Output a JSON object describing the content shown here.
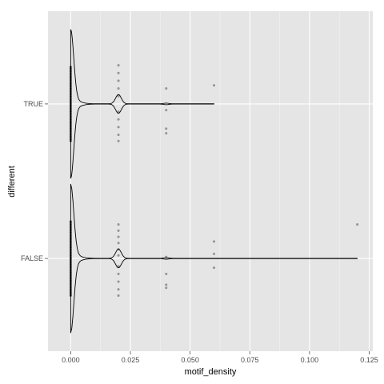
{
  "chart_data": {
    "type": "violin",
    "orientation": "horizontal",
    "xlabel": "motif_density",
    "ylabel": "different",
    "xlim": [
      -0.0095,
      0.1265
    ],
    "x_ticks": [
      0.0,
      0.025,
      0.05,
      0.075,
      0.1,
      0.125
    ],
    "x_tick_labels": [
      "0.000",
      "0.025",
      "0.050",
      "0.075",
      "0.100",
      "0.125"
    ],
    "categories": [
      "FALSE",
      "TRUE"
    ],
    "grid": true,
    "legend": "none",
    "colors": {
      "panel": "#e5e5e5",
      "grid_major": "#ffffff",
      "grid_minor": "#f2f2f2",
      "violin": "#000000",
      "point": "#9a9a9a"
    },
    "groups": [
      {
        "category": "FALSE",
        "max": 0.12,
        "points": [
          {
            "x": 0.02,
            "offset": 0.22
          },
          {
            "x": 0.02,
            "offset": 0.18
          },
          {
            "x": 0.02,
            "offset": 0.14
          },
          {
            "x": 0.02,
            "offset": 0.1
          },
          {
            "x": 0.02,
            "offset": 0.06
          },
          {
            "x": 0.02,
            "offset": 0.02
          },
          {
            "x": 0.02,
            "offset": -0.05
          },
          {
            "x": 0.02,
            "offset": -0.1
          },
          {
            "x": 0.02,
            "offset": -0.15
          },
          {
            "x": 0.02,
            "offset": -0.2
          },
          {
            "x": 0.02,
            "offset": -0.24
          },
          {
            "x": 0.04,
            "offset": 0.01
          },
          {
            "x": 0.04,
            "offset": -0.1
          },
          {
            "x": 0.04,
            "offset": -0.17
          },
          {
            "x": 0.04,
            "offset": -0.19
          },
          {
            "x": 0.06,
            "offset": 0.11
          },
          {
            "x": 0.06,
            "offset": 0.03
          },
          {
            "x": 0.06,
            "offset": -0.06
          },
          {
            "x": 0.12,
            "offset": 0.22
          }
        ]
      },
      {
        "category": "TRUE",
        "max": 0.06,
        "points": [
          {
            "x": 0.02,
            "offset": 0.25
          },
          {
            "x": 0.02,
            "offset": 0.2
          },
          {
            "x": 0.02,
            "offset": 0.15
          },
          {
            "x": 0.02,
            "offset": 0.1
          },
          {
            "x": 0.02,
            "offset": 0.05
          },
          {
            "x": 0.02,
            "offset": -0.05
          },
          {
            "x": 0.02,
            "offset": -0.1
          },
          {
            "x": 0.02,
            "offset": -0.15
          },
          {
            "x": 0.02,
            "offset": -0.2
          },
          {
            "x": 0.02,
            "offset": -0.24
          },
          {
            "x": 0.04,
            "offset": 0.1
          },
          {
            "x": 0.04,
            "offset": -0.04
          },
          {
            "x": 0.04,
            "offset": -0.16
          },
          {
            "x": 0.04,
            "offset": -0.19
          },
          {
            "x": 0.06,
            "offset": 0.12
          }
        ]
      }
    ]
  }
}
